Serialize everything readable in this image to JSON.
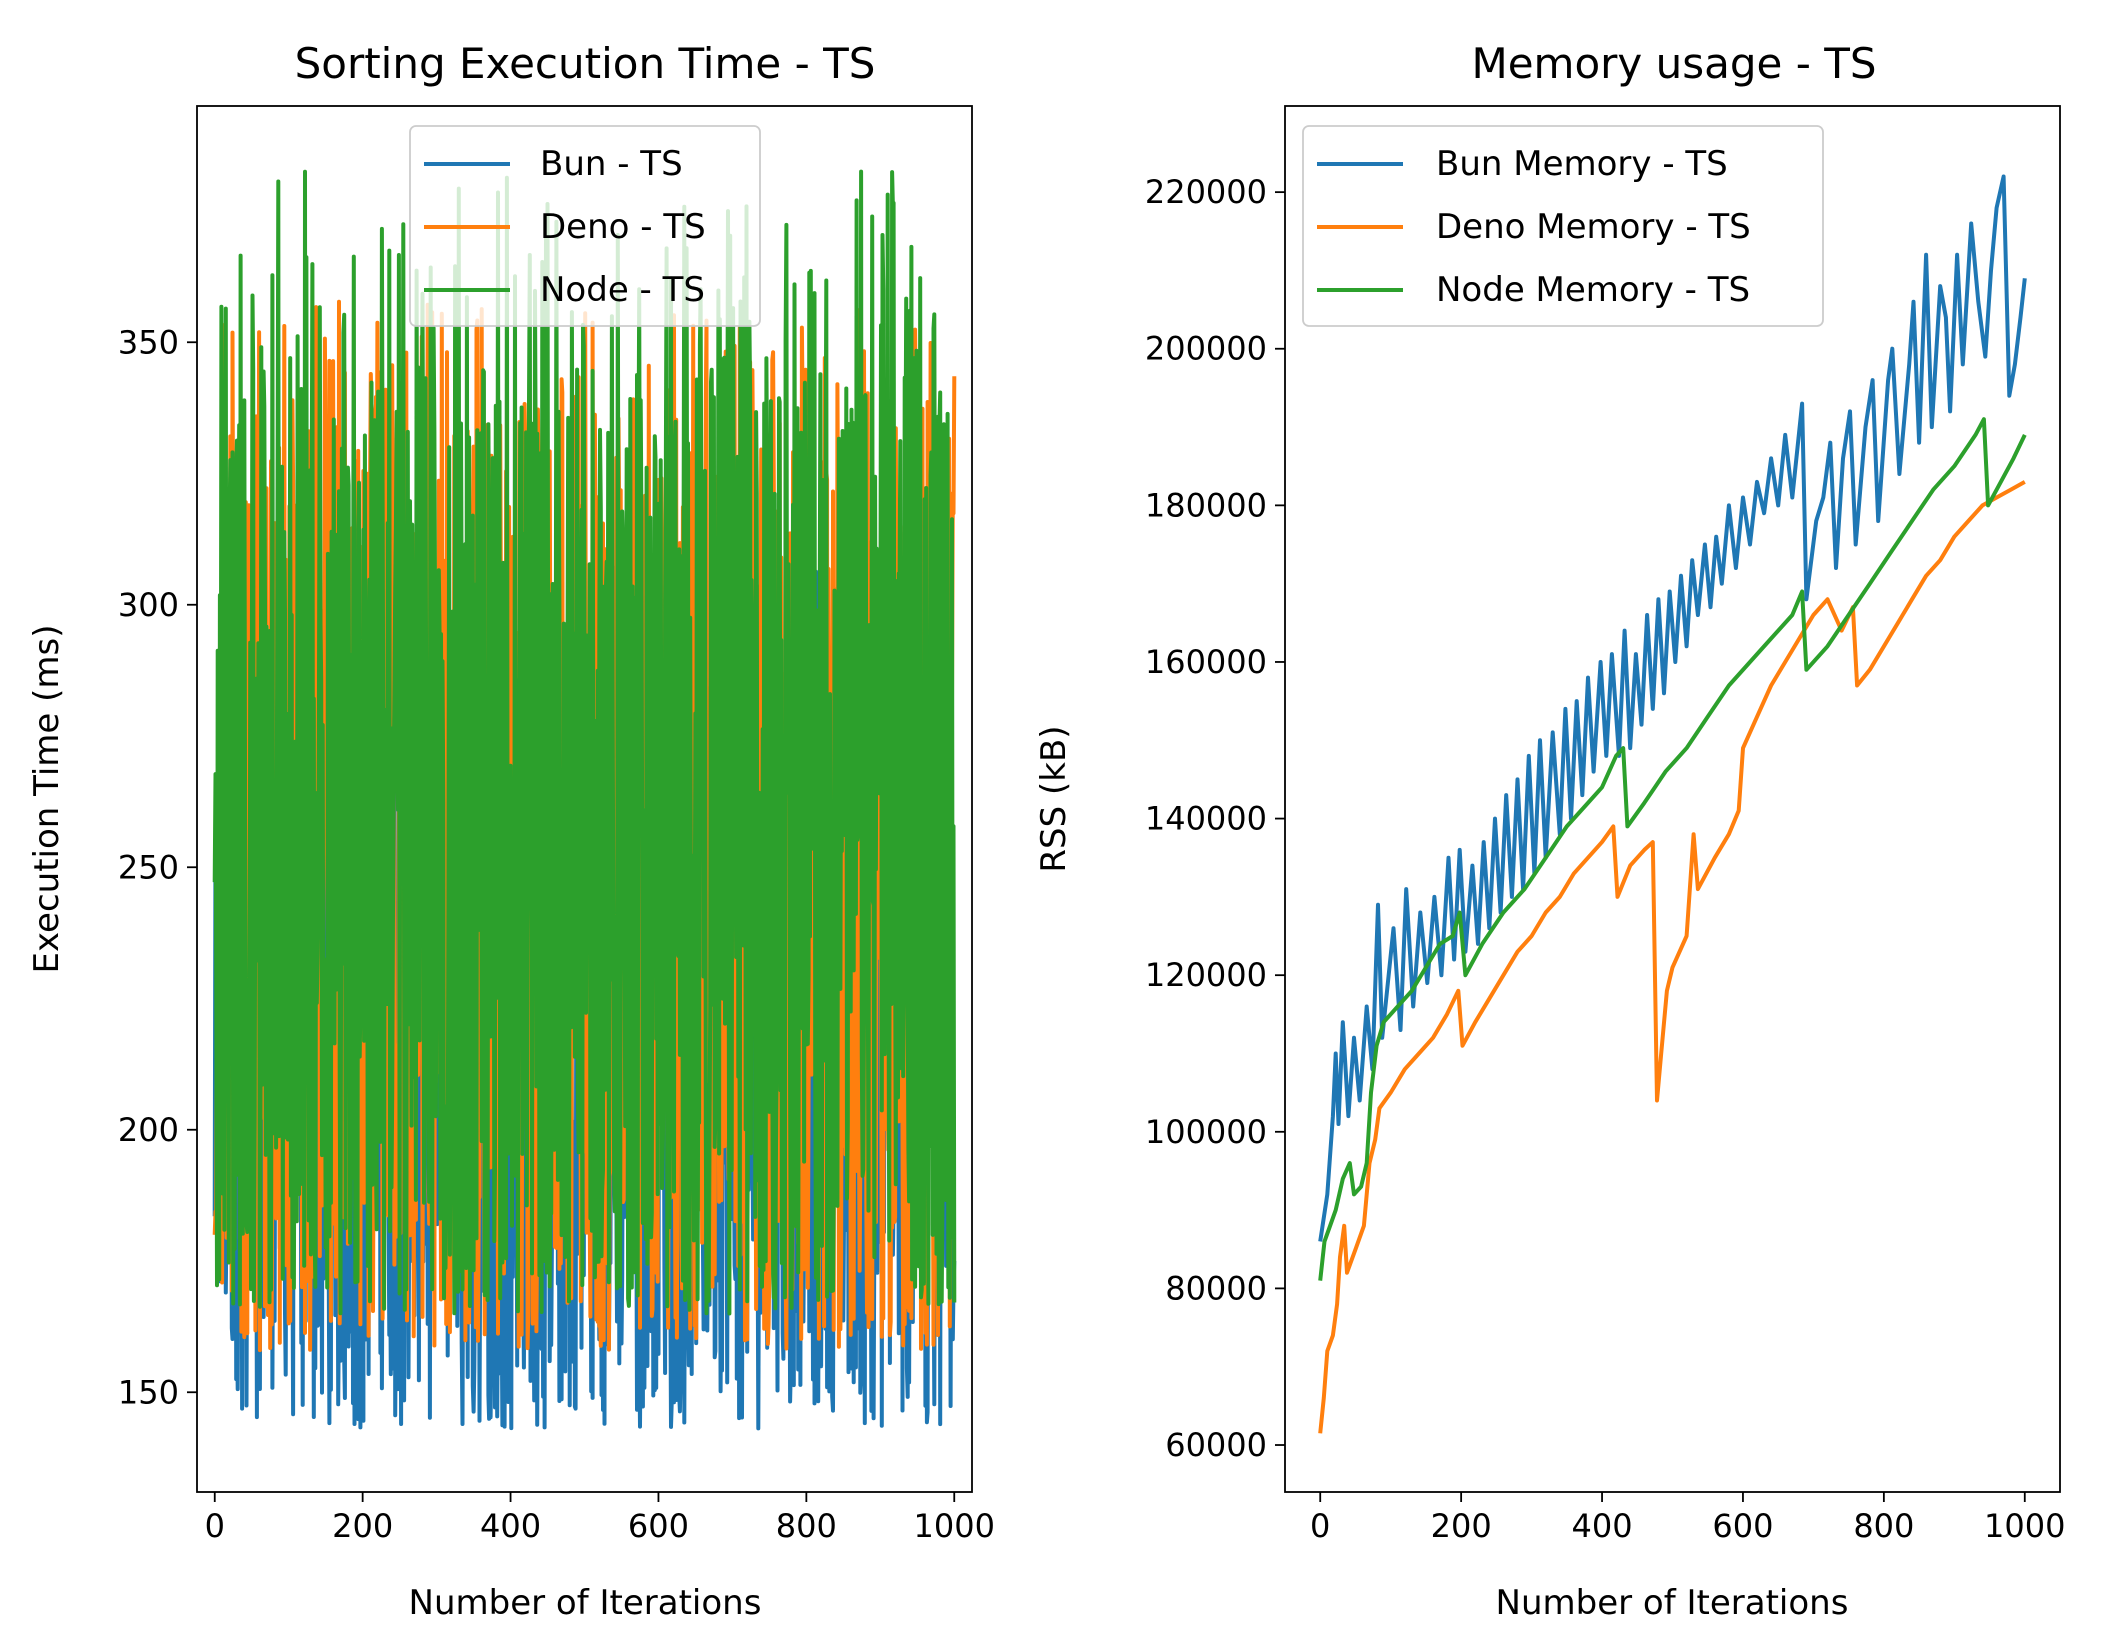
{
  "chart_data": [
    {
      "type": "line",
      "title": "Sorting Execution Time - TS",
      "xlabel": "Number of Iterations",
      "ylabel": "Execution Time (ms)",
      "xlim": [
        -24,
        1024
      ],
      "ylim": [
        131,
        395
      ],
      "xticks": [
        0,
        200,
        400,
        600,
        800,
        1000
      ],
      "yticks": [
        150,
        200,
        250,
        300,
        350
      ],
      "legend_position": "top-right",
      "grid": false,
      "series": [
        {
          "name": "Bun - TS",
          "color": "#1f77b4",
          "range": [
            143,
            310
          ],
          "typical": [
            150,
            260
          ],
          "x_max": 1000
        },
        {
          "name": "Deno - TS",
          "color": "#ff7f0e",
          "range": [
            158,
            358
          ],
          "typical": [
            165,
            330
          ],
          "x_max": 1000
        },
        {
          "name": "Node - TS",
          "color": "#2ca02c",
          "range": [
            165,
            383
          ],
          "typical": [
            175,
            345
          ],
          "x_max": 1000
        }
      ]
    },
    {
      "type": "line",
      "title": "Memory usage - TS",
      "xlabel": "Number of Iterations",
      "ylabel": "RSS (kB)",
      "xlim": [
        -50,
        1050
      ],
      "ylim": [
        54000,
        231000
      ],
      "xticks": [
        0,
        200,
        400,
        600,
        800,
        1000
      ],
      "yticks": [
        60000,
        80000,
        100000,
        120000,
        140000,
        160000,
        180000,
        200000,
        220000
      ],
      "legend_position": "top-left",
      "grid": false,
      "series": [
        {
          "name": "Bun Memory - TS",
          "color": "#1f77b4",
          "points": [
            [
              0,
              86000
            ],
            [
              10,
              92000
            ],
            [
              18,
              102000
            ],
            [
              22,
              110000
            ],
            [
              26,
              101000
            ],
            [
              32,
              114000
            ],
            [
              40,
              102000
            ],
            [
              48,
              112000
            ],
            [
              56,
              104000
            ],
            [
              66,
              116000
            ],
            [
              74,
              108000
            ],
            [
              82,
              129000
            ],
            [
              88,
              112000
            ],
            [
              104,
              126000
            ],
            [
              114,
              113000
            ],
            [
              122,
              131000
            ],
            [
              132,
              116000
            ],
            [
              142,
              128000
            ],
            [
              152,
              119000
            ],
            [
              162,
              130000
            ],
            [
              172,
              120000
            ],
            [
              182,
              135000
            ],
            [
              190,
              122000
            ],
            [
              198,
              136000
            ],
            [
              206,
              123000
            ],
            [
              216,
              134000
            ],
            [
              224,
              124000
            ],
            [
              232,
              137000
            ],
            [
              240,
              126000
            ],
            [
              248,
              140000
            ],
            [
              256,
              128000
            ],
            [
              264,
              143000
            ],
            [
              272,
              130000
            ],
            [
              280,
              145000
            ],
            [
              288,
              131000
            ],
            [
              296,
              148000
            ],
            [
              304,
              133000
            ],
            [
              312,
              150000
            ],
            [
              320,
              135000
            ],
            [
              330,
              151000
            ],
            [
              340,
              138000
            ],
            [
              348,
              154000
            ],
            [
              356,
              140000
            ],
            [
              364,
              155000
            ],
            [
              372,
              143000
            ],
            [
              380,
              158000
            ],
            [
              388,
              146000
            ],
            [
              398,
              160000
            ],
            [
              406,
              148000
            ],
            [
              414,
              161000
            ],
            [
              424,
              148000
            ],
            [
              432,
              164000
            ],
            [
              440,
              149000
            ],
            [
              448,
              161000
            ],
            [
              456,
              152000
            ],
            [
              464,
              166000
            ],
            [
              472,
              154000
            ],
            [
              480,
              168000
            ],
            [
              488,
              156000
            ],
            [
              496,
              169000
            ],
            [
              504,
              160000
            ],
            [
              512,
              171000
            ],
            [
              520,
              162000
            ],
            [
              528,
              173000
            ],
            [
              536,
              166000
            ],
            [
              546,
              175000
            ],
            [
              554,
              167000
            ],
            [
              562,
              176000
            ],
            [
              570,
              170000
            ],
            [
              580,
              180000
            ],
            [
              590,
              172000
            ],
            [
              600,
              181000
            ],
            [
              610,
              175000
            ],
            [
              620,
              183000
            ],
            [
              630,
              179000
            ],
            [
              640,
              186000
            ],
            [
              650,
              180000
            ],
            [
              660,
              189000
            ],
            [
              670,
              181000
            ],
            [
              684,
              193000
            ],
            [
              690,
              168000
            ],
            [
              704,
              178000
            ],
            [
              714,
              181000
            ],
            [
              724,
              188000
            ],
            [
              732,
              172000
            ],
            [
              742,
              186000
            ],
            [
              752,
              192000
            ],
            [
              760,
              175000
            ],
            [
              774,
              190000
            ],
            [
              784,
              196000
            ],
            [
              792,
              178000
            ],
            [
              806,
              196000
            ],
            [
              812,
              200000
            ],
            [
              822,
              184000
            ],
            [
              836,
              198000
            ],
            [
              842,
              206000
            ],
            [
              850,
              188000
            ],
            [
              860,
              212000
            ],
            [
              868,
              190000
            ],
            [
              880,
              208000
            ],
            [
              888,
              204000
            ],
            [
              894,
              192000
            ],
            [
              904,
              212000
            ],
            [
              912,
              198000
            ],
            [
              924,
              216000
            ],
            [
              934,
              206000
            ],
            [
              944,
              199000
            ],
            [
              952,
              210000
            ],
            [
              960,
              218000
            ],
            [
              970,
              222000
            ],
            [
              978,
              194000
            ],
            [
              986,
              198000
            ],
            [
              994,
              204000
            ],
            [
              1000,
              209000
            ]
          ]
        },
        {
          "name": "Deno Memory - TS",
          "color": "#ff7f0e",
          "points": [
            [
              0,
              61500
            ],
            [
              5,
              66000
            ],
            [
              10,
              72000
            ],
            [
              18,
              74000
            ],
            [
              24,
              78000
            ],
            [
              28,
              84000
            ],
            [
              34,
              88000
            ],
            [
              38,
              82000
            ],
            [
              50,
              85000
            ],
            [
              62,
              88000
            ],
            [
              70,
              96000
            ],
            [
              78,
              99000
            ],
            [
              84,
              103000
            ],
            [
              100,
              105000
            ],
            [
              120,
              108000
            ],
            [
              140,
              110000
            ],
            [
              160,
              112000
            ],
            [
              180,
              115000
            ],
            [
              196,
              118000
            ],
            [
              202,
              111000
            ],
            [
              220,
              114000
            ],
            [
              240,
              117000
            ],
            [
              260,
              120000
            ],
            [
              280,
              123000
            ],
            [
              300,
              125000
            ],
            [
              320,
              128000
            ],
            [
              340,
              130000
            ],
            [
              360,
              133000
            ],
            [
              380,
              135000
            ],
            [
              400,
              137000
            ],
            [
              416,
              139000
            ],
            [
              422,
              130000
            ],
            [
              440,
              134000
            ],
            [
              460,
              136000
            ],
            [
              472,
              137000
            ],
            [
              478,
              104000
            ],
            [
              484,
              110000
            ],
            [
              492,
              118000
            ],
            [
              500,
              121000
            ],
            [
              520,
              125000
            ],
            [
              530,
              138000
            ],
            [
              536,
              131000
            ],
            [
              560,
              135000
            ],
            [
              580,
              138000
            ],
            [
              594,
              141000
            ],
            [
              600,
              149000
            ],
            [
              620,
              153000
            ],
            [
              640,
              157000
            ],
            [
              660,
              160000
            ],
            [
              680,
              163000
            ],
            [
              700,
              166000
            ],
            [
              720,
              168000
            ],
            [
              740,
              164000
            ],
            [
              756,
              167000
            ],
            [
              762,
              157000
            ],
            [
              780,
              159000
            ],
            [
              800,
              162000
            ],
            [
              820,
              165000
            ],
            [
              840,
              168000
            ],
            [
              860,
              171000
            ],
            [
              880,
              173000
            ],
            [
              900,
              176000
            ],
            [
              920,
              178000
            ],
            [
              940,
              180000
            ],
            [
              960,
              181000
            ],
            [
              980,
              182000
            ],
            [
              1000,
              183000
            ]
          ]
        },
        {
          "name": "Node Memory - TS",
          "color": "#2ca02c",
          "points": [
            [
              0,
              81000
            ],
            [
              6,
              86000
            ],
            [
              14,
              88000
            ],
            [
              22,
              90000
            ],
            [
              32,
              94000
            ],
            [
              42,
              96000
            ],
            [
              48,
              92000
            ],
            [
              58,
              93000
            ],
            [
              66,
              96000
            ],
            [
              72,
              105000
            ],
            [
              80,
              111000
            ],
            [
              90,
              114000
            ],
            [
              110,
              116000
            ],
            [
              130,
              118000
            ],
            [
              150,
              121000
            ],
            [
              170,
              124000
            ],
            [
              188,
              125000
            ],
            [
              198,
              128000
            ],
            [
              206,
              120000
            ],
            [
              230,
              124000
            ],
            [
              260,
              128000
            ],
            [
              290,
              131000
            ],
            [
              320,
              135000
            ],
            [
              350,
              139000
            ],
            [
              380,
              142000
            ],
            [
              400,
              144000
            ],
            [
              420,
              148000
            ],
            [
              430,
              149000
            ],
            [
              436,
              139000
            ],
            [
              460,
              142000
            ],
            [
              490,
              146000
            ],
            [
              520,
              149000
            ],
            [
              550,
              153000
            ],
            [
              580,
              157000
            ],
            [
              610,
              160000
            ],
            [
              640,
              163000
            ],
            [
              670,
              166000
            ],
            [
              684,
              169000
            ],
            [
              690,
              159000
            ],
            [
              720,
              162000
            ],
            [
              750,
              166000
            ],
            [
              780,
              170000
            ],
            [
              810,
              174000
            ],
            [
              840,
              178000
            ],
            [
              870,
              182000
            ],
            [
              900,
              185000
            ],
            [
              930,
              189000
            ],
            [
              942,
              191000
            ],
            [
              948,
              180000
            ],
            [
              966,
              183000
            ],
            [
              984,
              186000
            ],
            [
              1000,
              189000
            ]
          ]
        }
      ]
    }
  ]
}
